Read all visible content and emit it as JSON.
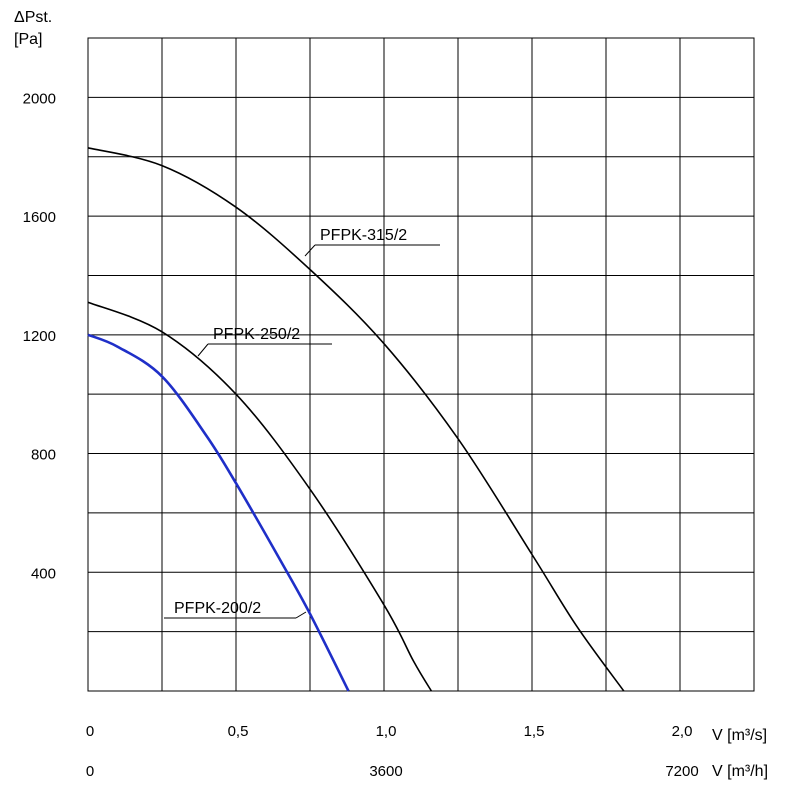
{
  "chart_data": {
    "type": "line",
    "title": "",
    "ylabel_symbol": "ΔPst.",
    "ylabel_unit": "[Pa]",
    "xlabel_primary": "V [m³/s]",
    "xlabel_secondary": "V [m³/h]",
    "xlim": [
      0,
      2.25
    ],
    "ylim": [
      0,
      2200
    ],
    "y_ticks": [
      400,
      800,
      1200,
      1600,
      2000
    ],
    "y_tick_labels": [
      "400",
      "800",
      "1200",
      "1600",
      "2000"
    ],
    "x_ticks": [
      0,
      0.5,
      1.0,
      1.5,
      2.0
    ],
    "x_tick_labels": [
      "0",
      "0,5",
      "1,0",
      "1,5",
      "2,0"
    ],
    "x2_tick_values": [
      0,
      1.0,
      2.0
    ],
    "x2_tick_labels": [
      "0",
      "3600",
      "7200"
    ],
    "grid": true,
    "series": [
      {
        "name": "PFPK-315/2",
        "color": "#000000",
        "x": [
          0,
          0.25,
          0.5,
          0.75,
          1.0,
          1.25,
          1.5,
          1.65,
          1.81
        ],
        "y": [
          1830,
          1770,
          1630,
          1420,
          1170,
          850,
          460,
          220,
          0
        ]
      },
      {
        "name": "PFPK-250/2",
        "color": "#000000",
        "x": [
          0,
          0.25,
          0.5,
          0.75,
          1.0,
          1.1,
          1.16
        ],
        "y": [
          1310,
          1210,
          1000,
          680,
          290,
          100,
          0
        ]
      },
      {
        "name": "PFPK-200/2",
        "color": "#1f2fc8",
        "x": [
          0,
          0.1,
          0.25,
          0.4,
          0.5,
          0.65,
          0.75,
          0.88
        ],
        "y": [
          1200,
          1160,
          1060,
          860,
          700,
          440,
          260,
          0
        ]
      }
    ]
  }
}
